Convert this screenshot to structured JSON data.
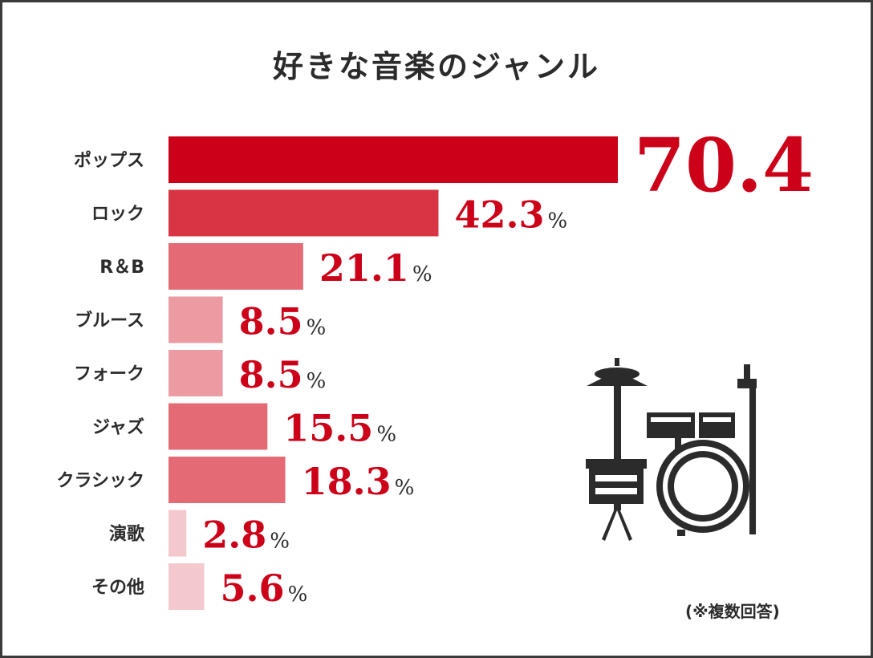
{
  "title": "好きな音楽のジャンル",
  "note": "(※複数回答)",
  "icon": "drum-kit-icon",
  "colors": {
    "bar_top": "#cc0018",
    "bar_2": "#d93444",
    "bar_mid": "#e46b75",
    "bar_light": "#ec9ba2",
    "bar_lightest": "#f4c9ce",
    "value_text": "#cc0018",
    "text": "#2b2b2b"
  },
  "chart_data": {
    "type": "bar",
    "orientation": "horizontal",
    "title": "好きな音楽のジャンル",
    "unit": "%",
    "categories": [
      "ポップス",
      "ロック",
      "R＆B",
      "ブルース",
      "フォーク",
      "ジャズ",
      "クラシック",
      "演歌",
      "その他"
    ],
    "values": [
      70.4,
      42.3,
      21.1,
      8.5,
      8.5,
      15.5,
      18.3,
      2.8,
      5.6
    ],
    "value_labels": [
      "70.4",
      "42.3",
      "21.1",
      "8.5",
      "8.5",
      "15.5",
      "18.3",
      "2.8",
      "5.6"
    ],
    "unit_labels": [
      "",
      "%",
      "%",
      "%",
      "%",
      "%",
      "%",
      "%",
      "%"
    ],
    "xlim": [
      0,
      70.4
    ],
    "grid": false,
    "legend": "none"
  }
}
